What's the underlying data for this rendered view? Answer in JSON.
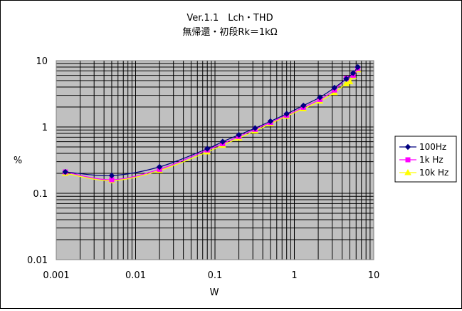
{
  "chart_data": {
    "type": "line",
    "title": "Ver.1.1　Lch・THD",
    "subtitle": "無帰還・初段Rk＝1kΩ",
    "xlabel": "W",
    "ylabel": "%",
    "xscale": "log",
    "yscale": "log",
    "xlim": [
      0.001,
      10
    ],
    "ylim": [
      0.01,
      10
    ],
    "x_ticks": [
      "0.001",
      "0.01",
      "0.1",
      "1",
      "10"
    ],
    "y_ticks": [
      "0.01",
      "0.1",
      "1",
      "10"
    ],
    "grid": true,
    "legend_position": "right",
    "plot_background": "#c0c0c0",
    "series": [
      {
        "name": "100Hz",
        "color": "#000080",
        "marker": "diamond",
        "points": [
          [
            0.0013,
            0.21
          ],
          [
            0.005,
            0.185
          ],
          [
            0.02,
            0.25
          ],
          [
            0.08,
            0.47
          ],
          [
            0.125,
            0.6
          ],
          [
            0.2,
            0.76
          ],
          [
            0.32,
            0.96
          ],
          [
            0.5,
            1.22
          ],
          [
            0.8,
            1.58
          ],
          [
            1.3,
            2.1
          ],
          [
            2.1,
            2.8
          ],
          [
            3.2,
            3.9
          ],
          [
            4.5,
            5.3
          ],
          [
            5.5,
            6.5
          ],
          [
            6.3,
            8.0
          ]
        ]
      },
      {
        "name": "1k Hz",
        "color": "#ff00ff",
        "marker": "square",
        "points": [
          [
            0.0013,
            0.21
          ],
          [
            0.005,
            0.16
          ],
          [
            0.02,
            0.23
          ],
          [
            0.08,
            0.45
          ],
          [
            0.125,
            0.56
          ],
          [
            0.2,
            0.72
          ],
          [
            0.32,
            0.92
          ],
          [
            0.5,
            1.17
          ],
          [
            0.8,
            1.5
          ],
          [
            1.3,
            1.98
          ],
          [
            2.1,
            2.6
          ],
          [
            3.2,
            3.6
          ],
          [
            4.5,
            5.4
          ],
          [
            5.5,
            6.0
          ],
          [
            6.3,
            7.6
          ]
        ]
      },
      {
        "name": "10k Hz",
        "color": "#ffff00",
        "marker": "triangle",
        "points": [
          [
            0.0013,
            0.2
          ],
          [
            0.005,
            0.155
          ],
          [
            0.02,
            0.22
          ],
          [
            0.08,
            0.42
          ],
          [
            0.125,
            0.53
          ],
          [
            0.2,
            0.68
          ],
          [
            0.32,
            0.87
          ],
          [
            0.5,
            1.12
          ],
          [
            0.8,
            1.45
          ],
          [
            1.3,
            1.88
          ],
          [
            2.1,
            2.45
          ],
          [
            3.2,
            3.3
          ],
          [
            4.5,
            4.5
          ],
          [
            5.0,
            4.8
          ],
          [
            5.5,
            5.8
          ],
          [
            6.3,
            7.3
          ]
        ]
      }
    ]
  }
}
